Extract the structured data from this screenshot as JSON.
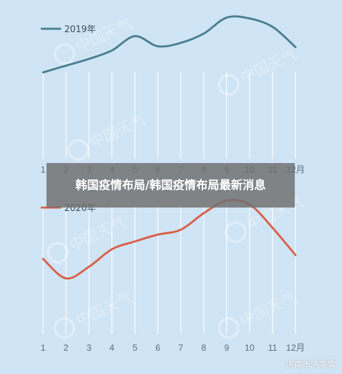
{
  "watermark": "中国天气",
  "banner_title": "韩国疫情布局/韩国疫情布局最新消息",
  "source_credit": "济南市济南事",
  "chart_data": [
    {
      "type": "line",
      "title": "",
      "xlabel": "",
      "ylabel": "",
      "x": [
        1,
        2,
        3,
        4,
        5,
        6,
        7,
        8,
        9,
        10,
        11,
        12
      ],
      "tick_labels": [
        "1",
        "2",
        "3",
        "4",
        "5",
        "6",
        "7",
        "8",
        "9",
        "10",
        "11",
        "12月"
      ],
      "ylim": [
        0,
        100
      ],
      "grid": true,
      "legend": "top-left",
      "series": [
        {
          "name": "2019年",
          "color": "#4a7f92",
          "values": [
            32,
            40,
            48,
            58,
            75,
            63,
            67,
            78,
            97,
            96,
            86,
            62
          ]
        }
      ]
    },
    {
      "type": "line",
      "title": "",
      "xlabel": "",
      "ylabel": "",
      "x": [
        1,
        2,
        3,
        4,
        5,
        6,
        7,
        8,
        9,
        10,
        11,
        12
      ],
      "tick_labels": [
        "1",
        "2",
        "3",
        "4",
        "5",
        "6",
        "7",
        "8",
        "9",
        "10",
        "11",
        "12月"
      ],
      "ylim": [
        0,
        100
      ],
      "grid": true,
      "legend": "top-left",
      "series": [
        {
          "name": "2020年",
          "color": "#d9604a",
          "values": [
            38,
            18,
            30,
            48,
            56,
            63,
            68,
            85,
            98,
            94,
            70,
            42
          ]
        }
      ]
    }
  ]
}
